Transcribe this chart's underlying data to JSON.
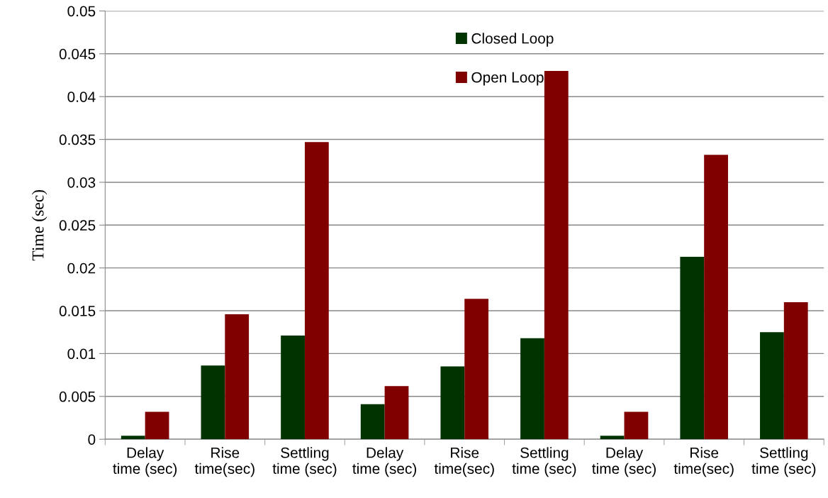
{
  "chart_data": {
    "type": "bar",
    "ylabel": "Time (sec)",
    "categories": [
      "Delay\ntime (sec)",
      "Rise\ntime(sec)",
      "Settling\ntime (sec)",
      "Delay\ntime (sec)",
      "Rise\ntime(sec)",
      "Settling\ntime (sec)",
      "Delay\ntime (sec)",
      "Rise\ntime(sec)",
      "Settling\ntime (sec)"
    ],
    "series": [
      {
        "name": "Closed Loop",
        "color": "#003300",
        "values": [
          0.0004,
          0.0086,
          0.0121,
          0.0041,
          0.0085,
          0.0118,
          0.0004,
          0.0213,
          0.0125
        ]
      },
      {
        "name": "Open Loop",
        "color": "#800000",
        "values": [
          0.0032,
          0.0146,
          0.0347,
          0.0062,
          0.0164,
          0.043,
          0.0032,
          0.0332,
          0.016
        ]
      }
    ],
    "ylim": [
      0,
      0.05
    ],
    "yticks": [
      0,
      0.005,
      0.01,
      0.015,
      0.02,
      0.025,
      0.03,
      0.035,
      0.04,
      0.045,
      0.05
    ],
    "grid": "y",
    "legend": "top"
  }
}
